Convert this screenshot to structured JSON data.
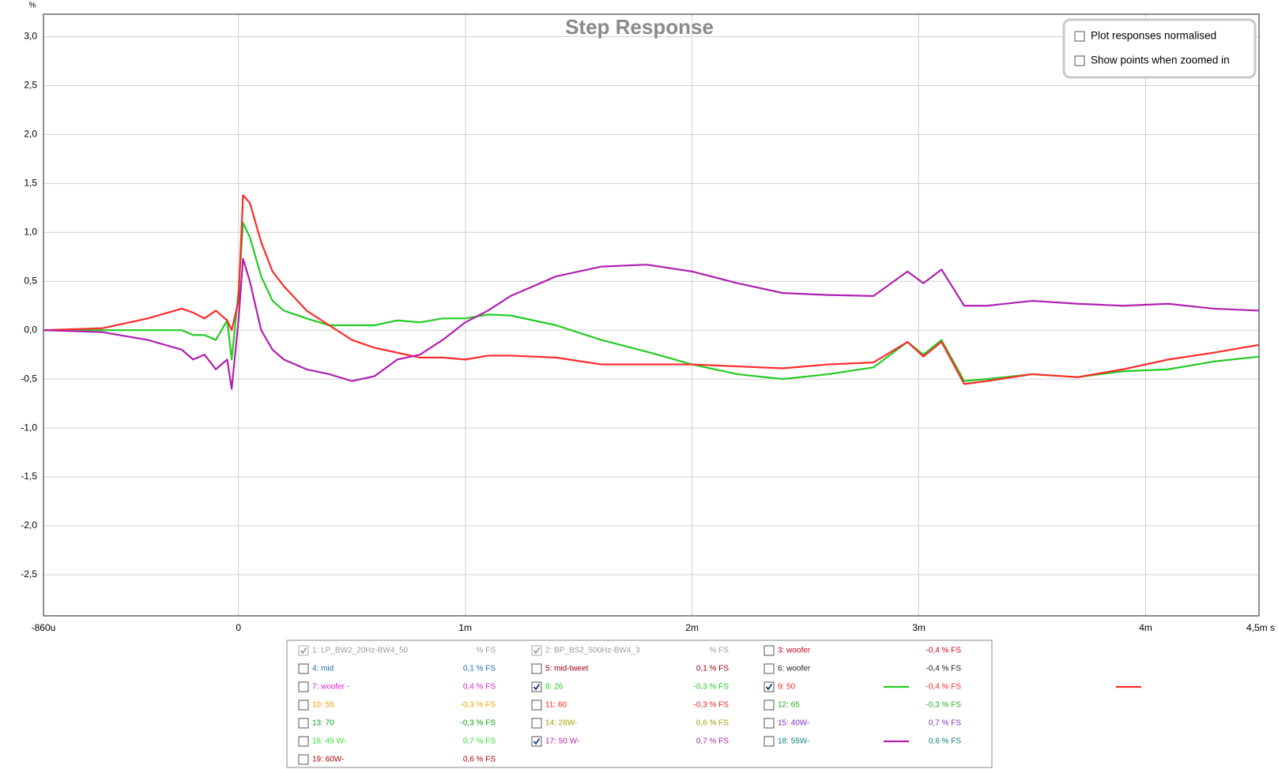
{
  "chart_data": {
    "type": "line",
    "title": "Step Response",
    "y_label": "%",
    "xlim": [
      -0.00086,
      0.0045
    ],
    "xticks": [
      {
        "value": -0.00086,
        "label": "-860u"
      },
      0,
      {
        "value": 0.001,
        "label": "1m"
      },
      {
        "value": 0.002,
        "label": "2m"
      },
      {
        "value": 0.003,
        "label": "3m"
      },
      {
        "value": 0.004,
        "label": "4m"
      },
      {
        "value": 0.0045,
        "label": "4,5m s"
      }
    ],
    "ylim": [
      -2.92,
      3.23
    ],
    "yticks": [
      {
        "value": -2.5,
        "label": "-2,5"
      },
      {
        "value": -2,
        "label": "-2,0"
      },
      {
        "value": -1.5,
        "label": "-1,5"
      },
      {
        "value": -1,
        "label": "-1,0"
      },
      {
        "value": -0.5,
        "label": "-0,5"
      },
      {
        "value": 0,
        "label": "0,0"
      },
      {
        "value": 0.5,
        "label": "0,5"
      },
      {
        "value": 1,
        "label": "1,0"
      },
      {
        "value": 1.5,
        "label": "1,5"
      },
      {
        "value": 2,
        "label": "2,0"
      },
      {
        "value": 2.5,
        "label": "2,5"
      },
      {
        "value": 3,
        "label": "3,0"
      }
    ],
    "grid": true,
    "x": [
      -0.00086,
      -0.0006,
      -0.0004,
      -0.00025,
      -0.0002,
      -0.00015,
      -0.0001,
      -5e-05,
      -3e-05,
      0,
      2e-05,
      5e-05,
      0.0001,
      0.00015,
      0.0002,
      0.0003,
      0.0004,
      0.0005,
      0.0006,
      0.0007,
      0.0008,
      0.0009,
      0.001,
      0.0011,
      0.0012,
      0.0014,
      0.0016,
      0.0018,
      0.002,
      0.0022,
      0.0024,
      0.0026,
      0.0028,
      0.00295,
      0.00302,
      0.0031,
      0.0032,
      0.0033,
      0.0035,
      0.0037,
      0.0039,
      0.0041,
      0.0043,
      0.0045
    ],
    "series": [
      {
        "name": "1: LP_BW2_20Hz-BW4_50",
        "color": "#9a9a9a",
        "checked": true,
        "enabled": false,
        "reading": "% FS"
      },
      {
        "name": "2: BP_BS2_500Hz-BW4_3",
        "color": "#9a9a9a",
        "checked": true,
        "enabled": false,
        "reading": "% FS"
      },
      {
        "name": "3: woofer",
        "color": "#d4002a",
        "checked": false,
        "reading": "-0,4 % FS"
      },
      {
        "name": "4: mid",
        "color": "#1a70b8",
        "checked": false,
        "reading": "0,1 % FS"
      },
      {
        "name": "5: mid-tweet",
        "color": "#a00010",
        "checked": false,
        "reading": "0,1 % FS"
      },
      {
        "name": "6: woofer",
        "color": "#222222",
        "checked": false,
        "reading": "-0,4 % FS"
      },
      {
        "name": "7: woofer -",
        "color": "#e020e0",
        "checked": false,
        "reading": "0,4 % FS"
      },
      {
        "name": "8: 26",
        "color": "#22cc22",
        "checked": true,
        "reading": "-0,3 % FS",
        "values": [
          0,
          0,
          0,
          0,
          -0.05,
          -0.05,
          -0.1,
          0.1,
          -0.3,
          0.4,
          1.1,
          0.95,
          0.55,
          0.3,
          0.2,
          0.12,
          0.05,
          0.05,
          0.05,
          0.1,
          0.08,
          0.12,
          0.12,
          0.16,
          0.15,
          0.05,
          -0.1,
          -0.22,
          -0.35,
          -0.45,
          -0.5,
          -0.45,
          -0.38,
          -0.12,
          -0.25,
          -0.1,
          -0.52,
          -0.5,
          -0.45,
          -0.48,
          -0.42,
          -0.4,
          -0.32,
          -0.27
        ]
      },
      {
        "name": "9: 50",
        "color": "#ff2a2a",
        "checked": true,
        "reading": "-0,4 % FS",
        "values": [
          0,
          0.02,
          0.12,
          0.22,
          0.18,
          0.12,
          0.2,
          0.1,
          0,
          0.3,
          1.38,
          1.3,
          0.9,
          0.6,
          0.45,
          0.2,
          0.05,
          -0.1,
          -0.18,
          -0.23,
          -0.28,
          -0.28,
          -0.3,
          -0.26,
          -0.26,
          -0.28,
          -0.35,
          -0.35,
          -0.35,
          -0.37,
          -0.39,
          -0.35,
          -0.33,
          -0.12,
          -0.27,
          -0.12,
          -0.55,
          -0.52,
          -0.45,
          -0.48,
          -0.4,
          -0.3,
          -0.23,
          -0.15
        ]
      },
      {
        "name": "10: 55",
        "color": "#f0a000",
        "checked": false,
        "reading": "-0,3 % FS"
      },
      {
        "name": "11: 60",
        "color": "#ff2020",
        "checked": false,
        "reading": "-0,3 % FS"
      },
      {
        "name": "12: 65",
        "color": "#20b020",
        "checked": false,
        "reading": "-0,3 % FS"
      },
      {
        "name": "13: 70",
        "color": "#10a010",
        "checked": false,
        "reading": "-0,3 % FS"
      },
      {
        "name": "14: 26W-",
        "color": "#a0a000",
        "checked": false,
        "reading": "0,6 % FS"
      },
      {
        "name": "15: 40W-",
        "color": "#8030c0",
        "checked": false,
        "reading": "0,7 % FS"
      },
      {
        "name": "16: 45 W-",
        "color": "#30e030",
        "checked": false,
        "reading": "0,7 % FS"
      },
      {
        "name": "17: 50 W-",
        "color": "#b020b0",
        "checked": true,
        "reading": "0,7 % FS",
        "values": [
          0,
          -0.02,
          -0.1,
          -0.2,
          -0.3,
          -0.25,
          -0.4,
          -0.3,
          -0.6,
          0.1,
          0.73,
          0.5,
          0,
          -0.2,
          -0.3,
          -0.4,
          -0.45,
          -0.52,
          -0.47,
          -0.3,
          -0.25,
          -0.1,
          0.08,
          0.2,
          0.35,
          0.55,
          0.65,
          0.67,
          0.6,
          0.48,
          0.38,
          0.36,
          0.35,
          0.6,
          0.48,
          0.62,
          0.25,
          0.25,
          0.3,
          0.27,
          0.25,
          0.27,
          0.22,
          0.2
        ]
      },
      {
        "name": "18: 55W-",
        "color": "#108080",
        "checked": false,
        "reading": "0,6 % FS"
      },
      {
        "name": "19: 60W-",
        "color": "#b00000",
        "checked": false,
        "reading": "0,6 % FS"
      }
    ]
  },
  "controls": [
    {
      "label": "Plot responses normalised",
      "checked": false
    },
    {
      "label": "Show points when zoomed in",
      "checked": false
    }
  ]
}
